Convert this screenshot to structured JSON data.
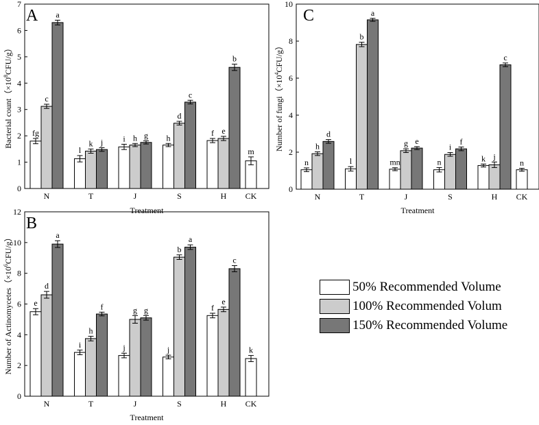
{
  "chart_data": [
    {
      "type": "bar",
      "panel_label": "A",
      "categories": [
        "N",
        "T",
        "J",
        "S",
        "H",
        "CK"
      ],
      "xlabel": "Treatment",
      "ylabel_main": "Bacterial count（×10",
      "ylabel_sup": "8",
      "ylabel_tail": "CFU/g）",
      "ylim": [
        0,
        7
      ],
      "yticks": [
        "0",
        "1",
        "2",
        "3",
        "4",
        "5",
        "6",
        "7"
      ],
      "series": [
        {
          "name": "50% Recommended Volume",
          "values": [
            1.8,
            1.13,
            1.58,
            1.65,
            1.82,
            1.05
          ],
          "errors": [
            0.1,
            0.12,
            0.1,
            0.06,
            0.08,
            0.15
          ],
          "letters": [
            "fg",
            "l",
            "i",
            "h",
            "f",
            "m"
          ]
        },
        {
          "name": "100% Recommended Volum",
          "values": [
            3.12,
            1.42,
            1.65,
            2.48,
            1.9,
            null
          ],
          "errors": [
            0.08,
            0.08,
            0.06,
            0.07,
            0.08,
            null
          ],
          "letters": [
            "c",
            "k",
            "h",
            "d",
            "e",
            ""
          ]
        },
        {
          "name": "150% Recommended Volume",
          "values": [
            6.3,
            1.48,
            1.75,
            3.28,
            4.6,
            null
          ],
          "errors": [
            0.09,
            0.07,
            0.06,
            0.07,
            0.12,
            null
          ],
          "letters": [
            "a",
            "j",
            "g",
            "c",
            "b",
            ""
          ]
        }
      ]
    },
    {
      "type": "bar",
      "panel_label": "B",
      "categories": [
        "N",
        "T",
        "J",
        "S",
        "H",
        "CK"
      ],
      "xlabel": "Treatment",
      "ylabel_main": "Number of Actinomycetes（×10",
      "ylabel_sup": "6",
      "ylabel_tail": "CFU/g）",
      "ylim": [
        0,
        12
      ],
      "yticks": [
        "0",
        "2",
        "4",
        "6",
        "8",
        "10",
        "12"
      ],
      "series": [
        {
          "name": "50% Recommended Volume",
          "values": [
            5.5,
            2.85,
            2.65,
            2.55,
            5.25,
            2.45
          ],
          "errors": [
            0.2,
            0.15,
            0.15,
            0.12,
            0.15,
            0.2
          ],
          "letters": [
            "e",
            "i",
            "j",
            "j",
            "f",
            "k"
          ]
        },
        {
          "name": "100% Recommended Volum",
          "values": [
            6.6,
            3.75,
            5.0,
            9.05,
            5.65,
            null
          ],
          "errors": [
            0.22,
            0.15,
            0.25,
            0.15,
            0.15,
            null
          ],
          "letters": [
            "d",
            "h",
            "g",
            "b",
            "e",
            ""
          ]
        },
        {
          "name": "150% Recommended Volume",
          "values": [
            9.9,
            5.35,
            5.1,
            9.7,
            8.3,
            null
          ],
          "errors": [
            0.22,
            0.12,
            0.15,
            0.15,
            0.2,
            null
          ],
          "letters": [
            "a",
            "f",
            "g",
            "a",
            "c",
            ""
          ]
        }
      ]
    },
    {
      "type": "bar",
      "panel_label": "C",
      "categories": [
        "N",
        "T",
        "J",
        "S",
        "H",
        "CK"
      ],
      "xlabel": "Treatment",
      "ylabel_main": "Number of fungi（×10",
      "ylabel_sup": "4",
      "ylabel_tail": "CFU/g）",
      "ylim": [
        0,
        10
      ],
      "yticks": [
        "0",
        "2",
        "4",
        "6",
        "8",
        "10"
      ],
      "series": [
        {
          "name": "50% Recommended Volume",
          "values": [
            1.05,
            1.1,
            1.08,
            1.05,
            1.28,
            1.05
          ],
          "errors": [
            0.1,
            0.12,
            0.08,
            0.12,
            0.08,
            0.08
          ],
          "letters": [
            "n",
            "l",
            "mn",
            "n",
            "k",
            "n"
          ]
        },
        {
          "name": "100% Recommended Volum",
          "values": [
            1.92,
            7.82,
            2.08,
            1.88,
            1.32,
            null
          ],
          "errors": [
            0.1,
            0.12,
            0.1,
            0.1,
            0.15,
            null
          ],
          "letters": [
            "h",
            "b",
            "g",
            "i",
            "j",
            ""
          ]
        },
        {
          "name": "150% Recommended Volume",
          "values": [
            2.58,
            9.15,
            2.22,
            2.18,
            6.72,
            null
          ],
          "errors": [
            0.1,
            0.08,
            0.08,
            0.1,
            0.1,
            null
          ],
          "letters": [
            "d",
            "a",
            "e",
            "f",
            "c",
            ""
          ]
        }
      ]
    }
  ],
  "legend": [
    {
      "label": "50% Recommended Volume",
      "color": "#ffffff"
    },
    {
      "label": "100% Recommended Volum",
      "color": "#cccccc"
    },
    {
      "label": "150% Recommended Volume",
      "color": "#777777"
    }
  ],
  "colors": [
    "#ffffff",
    "#cccccc",
    "#777777"
  ]
}
